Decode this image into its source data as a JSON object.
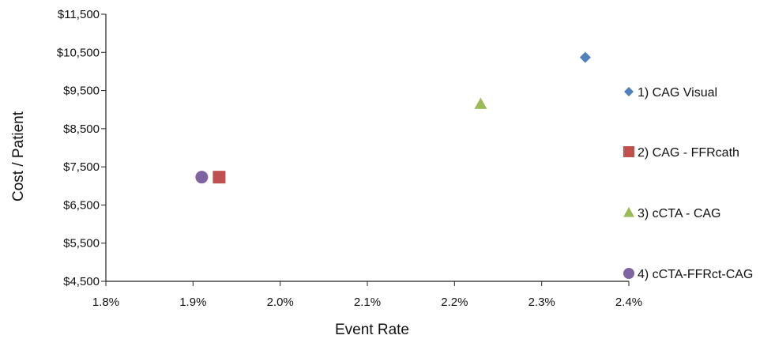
{
  "chart_data": {
    "type": "scatter",
    "xlabel": "Event Rate",
    "ylabel": "Cost / Patient",
    "xlim": [
      0.018,
      0.024
    ],
    "ylim": [
      4500,
      11500
    ],
    "x_ticks": [
      0.018,
      0.019,
      0.02,
      0.021,
      0.022,
      0.023,
      0.024
    ],
    "x_tick_labels": [
      "1.8%",
      "1.9%",
      "2.0%",
      "2.1%",
      "2.2%",
      "2.3%",
      "2.4%"
    ],
    "y_ticks": [
      4500,
      5500,
      6500,
      7500,
      8500,
      9500,
      10500,
      11500
    ],
    "y_tick_labels": [
      "$4,500",
      "$5,500",
      "$6,500",
      "$7,500",
      "$8,500",
      "$9,500",
      "$10,500",
      "$11,500"
    ],
    "grid": false,
    "legend_position": "right",
    "series": [
      {
        "name": "1) CAG Visual",
        "marker": "diamond",
        "color": "#4F81BD",
        "points": [
          {
            "x": 0.0235,
            "y": 10370
          }
        ]
      },
      {
        "name": "2) CAG - FFRcath",
        "marker": "square",
        "color": "#C0504D",
        "points": [
          {
            "x": 0.0193,
            "y": 7230
          }
        ]
      },
      {
        "name": "3) cCTA - CAG",
        "marker": "triangle",
        "color": "#9BBB59",
        "points": [
          {
            "x": 0.0223,
            "y": 9150
          }
        ]
      },
      {
        "name": "4) cCTA-FFRct-CAG",
        "marker": "circle",
        "color": "#8064A2",
        "points": [
          {
            "x": 0.0191,
            "y": 7230
          }
        ]
      }
    ]
  }
}
